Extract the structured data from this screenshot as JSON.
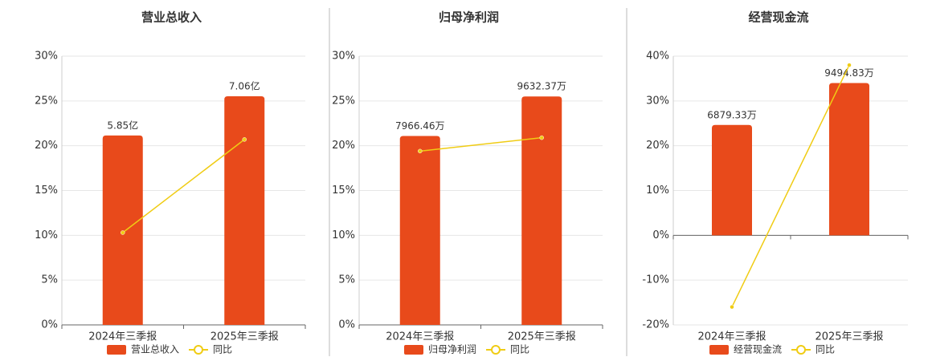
{
  "chart_data": [
    {
      "type": "bar",
      "title": "营业总收入",
      "categories": [
        "2024年三季报",
        "2025年三季报"
      ],
      "series": [
        {
          "name": "营业总收入",
          "color": "#e84a1b",
          "axis": "y2",
          "values": [
            5.85,
            7.06
          ],
          "value_labels": [
            "5.85亿",
            "7.06亿"
          ]
        },
        {
          "name": "同比",
          "type": "line",
          "color": "#f0cc14",
          "values": [
            10.3,
            20.7
          ]
        }
      ],
      "ylim": [
        0,
        30
      ],
      "yticks": [
        {
          "value": 0,
          "label": "0%"
        },
        {
          "value": 5,
          "label": "5%"
        },
        {
          "value": 10,
          "label": "10%"
        },
        {
          "value": 15,
          "label": "15%"
        },
        {
          "value": 20,
          "label": "20%"
        },
        {
          "value": 25,
          "label": "25%"
        },
        {
          "value": 30,
          "label": "30%"
        }
      ],
      "y2lim": [
        0,
        8.3
      ],
      "grid": true
    },
    {
      "type": "bar",
      "title": "归母净利润",
      "categories": [
        "2024年三季报",
        "2025年三季报"
      ],
      "series": [
        {
          "name": "归母净利润",
          "color": "#e84a1b",
          "axis": "y2",
          "values": [
            7966.46,
            9632.37
          ],
          "value_labels": [
            "7966.46万",
            "9632.37万"
          ]
        },
        {
          "name": "同比",
          "type": "line",
          "color": "#f0cc14",
          "values": [
            19.4,
            20.9
          ]
        }
      ],
      "ylim": [
        0,
        30
      ],
      "yticks": [
        {
          "value": 0,
          "label": "0%"
        },
        {
          "value": 5,
          "label": "5%"
        },
        {
          "value": 10,
          "label": "10%"
        },
        {
          "value": 15,
          "label": "15%"
        },
        {
          "value": 20,
          "label": "20%"
        },
        {
          "value": 25,
          "label": "25%"
        },
        {
          "value": 30,
          "label": "30%"
        }
      ],
      "y2lim": [
        0,
        11330
      ],
      "grid": true
    },
    {
      "type": "bar",
      "title": "经营现金流",
      "categories": [
        "2024年三季报",
        "2025年三季报"
      ],
      "series": [
        {
          "name": "经营现金流",
          "color": "#e84a1b",
          "axis": "y2",
          "values": [
            6879.33,
            9494.83
          ],
          "value_labels": [
            "6879.33万",
            "9494.83万"
          ]
        },
        {
          "name": "同比",
          "type": "line",
          "color": "#f0cc14",
          "values": [
            -16,
            38
          ]
        }
      ],
      "ylim": [
        -20,
        40
      ],
      "yticks": [
        {
          "value": -20,
          "label": "-20%"
        },
        {
          "value": -10,
          "label": "-10%"
        },
        {
          "value": 0,
          "label": "0%"
        },
        {
          "value": 10,
          "label": "10%"
        },
        {
          "value": 20,
          "label": "20%"
        },
        {
          "value": 30,
          "label": "30%"
        },
        {
          "value": 40,
          "label": "40%"
        }
      ],
      "y2lim": [
        -5586,
        11172
      ],
      "grid": true
    }
  ]
}
